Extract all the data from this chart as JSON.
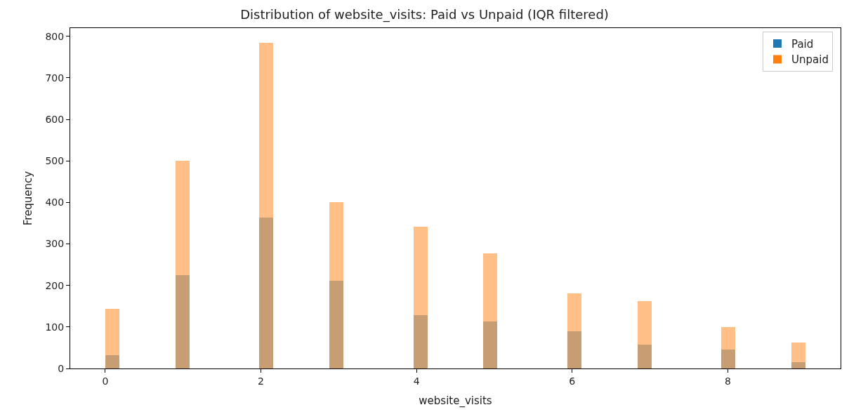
{
  "chart_data": {
    "type": "histogram",
    "title": "Distribution of website_visits: Paid vs Unpaid (IQR filtered)",
    "xlabel": "website_visits",
    "ylabel": "Frequency",
    "bins": [
      0,
      0.18,
      0.36,
      0.54,
      0.72,
      0.9,
      1.08,
      1.26,
      1.44,
      1.62,
      1.8,
      1.98,
      2.16,
      2.34,
      2.52,
      2.7,
      2.88,
      3.06,
      3.24,
      3.42,
      3.6,
      3.78,
      3.96,
      4.14,
      4.32,
      4.5,
      4.68,
      4.86,
      5.04,
      5.22,
      5.4,
      5.58,
      5.76,
      5.94,
      6.12,
      6.3,
      6.48,
      6.66,
      6.84,
      7.02,
      7.2,
      7.38,
      7.56,
      7.74,
      7.92,
      8.1,
      8.28,
      8.46,
      8.64,
      8.82,
      9.0
    ],
    "series": [
      {
        "name": "Paid",
        "color": "#1f77b4",
        "values": [
          32,
          0,
          0,
          0,
          0,
          225,
          0,
          0,
          0,
          0,
          0,
          363,
          0,
          0,
          0,
          0,
          212,
          0,
          0,
          0,
          0,
          0,
          128,
          0,
          0,
          0,
          0,
          114,
          0,
          0,
          0,
          0,
          0,
          90,
          0,
          0,
          0,
          0,
          57,
          0,
          0,
          0,
          0,
          0,
          46,
          0,
          0,
          0,
          0,
          16
        ]
      },
      {
        "name": "Unpaid",
        "color": "#ff7f0e",
        "values": [
          143,
          0,
          0,
          0,
          0,
          500,
          0,
          0,
          0,
          0,
          0,
          784,
          0,
          0,
          0,
          0,
          400,
          0,
          0,
          0,
          0,
          0,
          341,
          0,
          0,
          0,
          0,
          278,
          0,
          0,
          0,
          0,
          0,
          181,
          0,
          0,
          0,
          0,
          162,
          0,
          0,
          0,
          0,
          0,
          100,
          0,
          0,
          0,
          0,
          62
        ]
      }
    ],
    "xlim": [
      -0.45,
      9.45
    ],
    "xticks": [
      0,
      2,
      4,
      6,
      8
    ],
    "ylim": [
      0,
      820
    ],
    "yticks": [
      0,
      100,
      200,
      300,
      400,
      500,
      600,
      700,
      800
    ],
    "legend": "top right"
  }
}
